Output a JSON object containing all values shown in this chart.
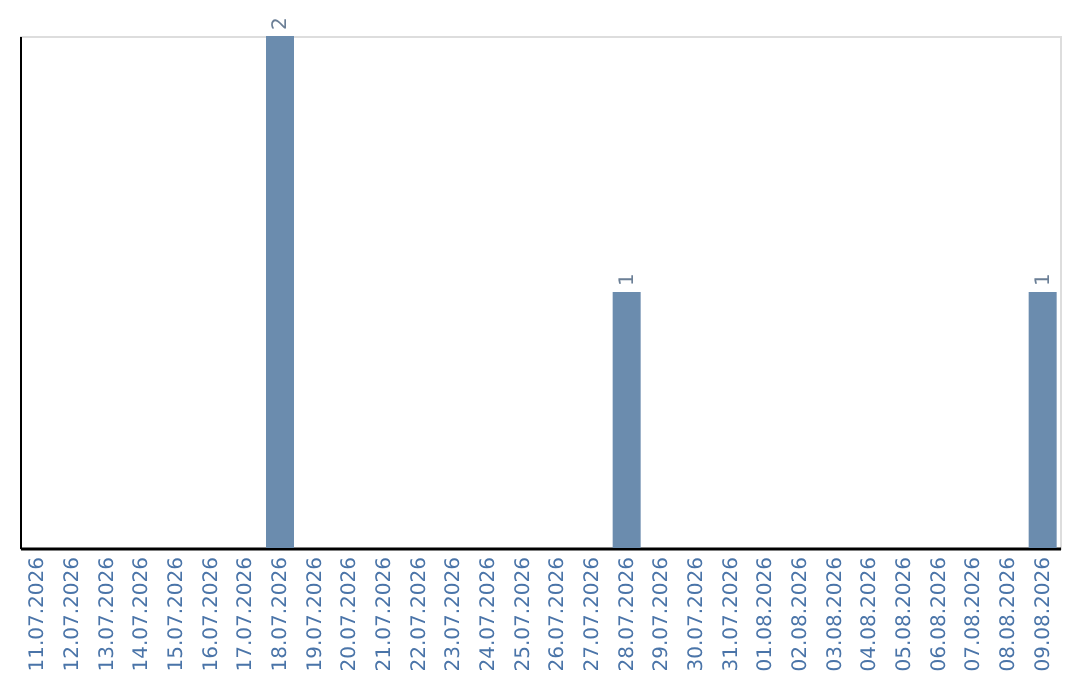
{
  "chart_data": {
    "type": "bar",
    "categories": [
      "11.07.2026",
      "12.07.2026",
      "13.07.2026",
      "14.07.2026",
      "15.07.2026",
      "16.07.2026",
      "17.07.2026",
      "18.07.2026",
      "19.07.2026",
      "20.07.2026",
      "21.07.2026",
      "22.07.2026",
      "23.07.2026",
      "24.07.2026",
      "25.07.2026",
      "26.07.2026",
      "27.07.2026",
      "28.07.2026",
      "29.07.2026",
      "30.07.2026",
      "31.07.2026",
      "01.08.2026",
      "02.08.2026",
      "03.08.2026",
      "04.08.2026",
      "05.08.2026",
      "06.08.2026",
      "07.08.2026",
      "08.08.2026",
      "09.08.2026"
    ],
    "values": [
      0,
      0,
      0,
      0,
      0,
      0,
      0,
      2,
      0,
      0,
      0,
      0,
      0,
      0,
      0,
      0,
      0,
      1,
      0,
      0,
      0,
      0,
      0,
      0,
      0,
      0,
      0,
      0,
      0,
      1
    ],
    "value_labels": [
      null,
      null,
      null,
      null,
      null,
      null,
      null,
      "2",
      null,
      null,
      null,
      null,
      null,
      null,
      null,
      null,
      null,
      "1",
      null,
      null,
      null,
      null,
      null,
      null,
      null,
      null,
      null,
      null,
      null,
      "1"
    ],
    "color": "#6b8cae",
    "tick_labels": "x",
    "grid": false
  }
}
